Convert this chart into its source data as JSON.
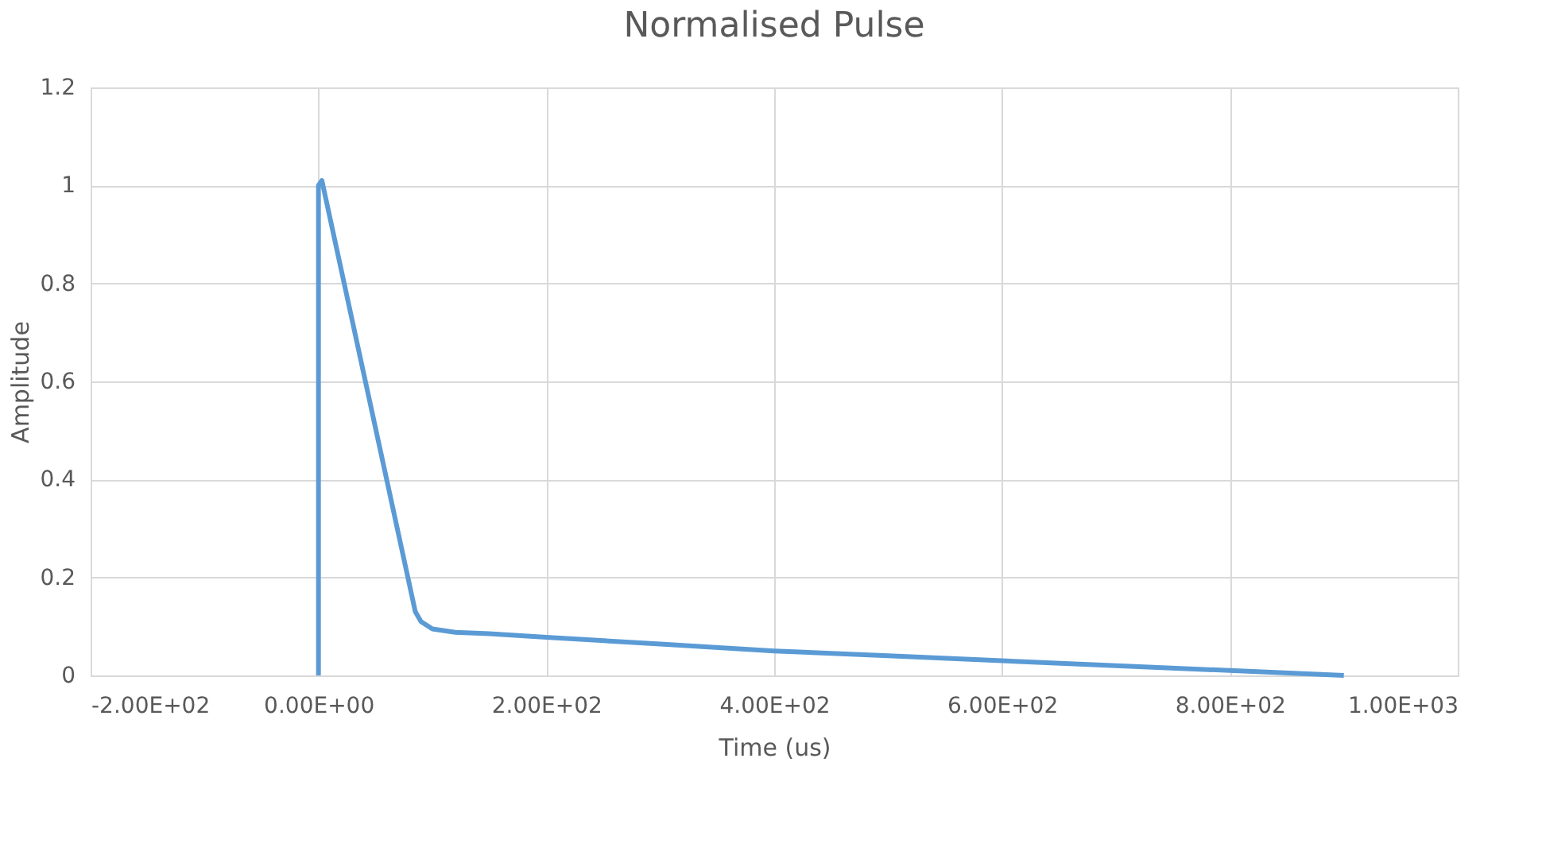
{
  "chart_data": {
    "type": "line",
    "title": "Normalised Pulse",
    "xlabel": "Time (us)",
    "ylabel": "Amplitude",
    "x": [
      0,
      0,
      3,
      85,
      90,
      100,
      120,
      150,
      200,
      300,
      400,
      500,
      600,
      700,
      800,
      900
    ],
    "series": [
      {
        "color": "#5b9bd5",
        "values": [
          0,
          1.0,
          1.01,
          0.13,
          0.11,
          0.095,
          0.088,
          0.085,
          0.078,
          0.064,
          0.05,
          0.04,
          0.03,
          0.02,
          0.01,
          0.0
        ]
      }
    ],
    "xlim": [
      -200,
      1000
    ],
    "xticks": [
      {
        "value": -200,
        "label": "-2.00E+02"
      },
      {
        "value": 0,
        "label": "0.00E+00"
      },
      {
        "value": 200,
        "label": "2.00E+02"
      },
      {
        "value": 400,
        "label": "4.00E+02"
      },
      {
        "value": 600,
        "label": "6.00E+02"
      },
      {
        "value": 800,
        "label": "8.00E+02"
      },
      {
        "value": 1000,
        "label": "1.00E+03"
      }
    ],
    "ylim": [
      0,
      1.2
    ],
    "yticks": [
      0,
      0.2,
      0.4,
      0.6,
      0.8,
      1,
      1.2
    ],
    "grid": true,
    "marker": "none",
    "line_style": "solid"
  }
}
